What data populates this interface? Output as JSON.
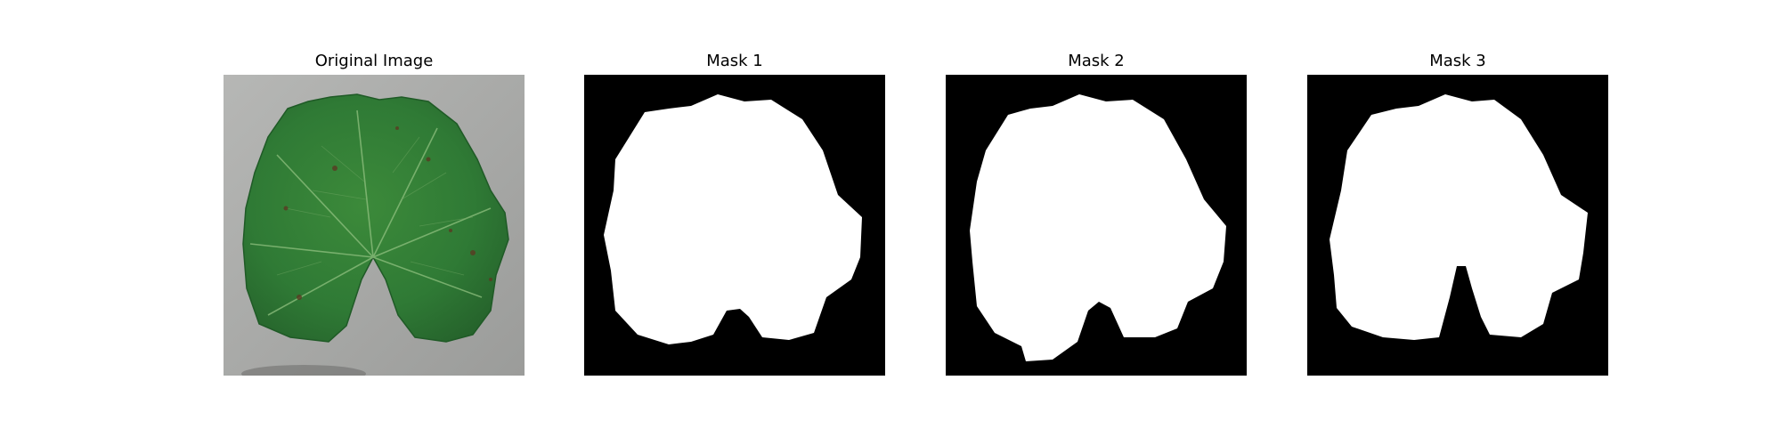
{
  "panels": [
    {
      "title": "Original Image",
      "content": "leaf-photo"
    },
    {
      "title": "Mask 1",
      "content": "binary-mask"
    },
    {
      "title": "Mask 2",
      "content": "binary-mask"
    },
    {
      "title": "Mask 3",
      "content": "binary-mask"
    }
  ],
  "colors": {
    "background": "#ffffff",
    "mask_background": "#000000",
    "mask_foreground": "#ffffff",
    "photo_background": "#a9aaa8",
    "leaf_green": "#2f7a35",
    "leaf_dark": "#1f5a26",
    "leaf_light": "#4f9a45"
  }
}
